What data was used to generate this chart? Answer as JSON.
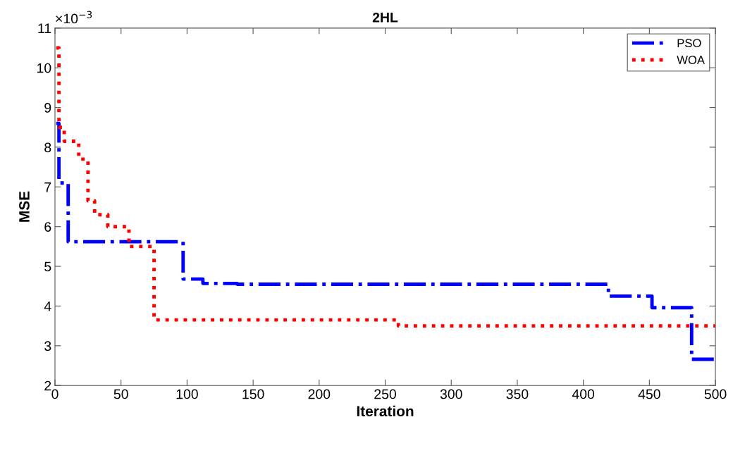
{
  "chart_data": {
    "type": "step",
    "title": "2HL",
    "xlabel": "Iteration",
    "ylabel": "MSE",
    "annotations": [
      "×10$^{−3}$"
    ],
    "xlim": [
      0,
      500
    ],
    "xticks": [
      0,
      50,
      100,
      150,
      200,
      250,
      300,
      350,
      400,
      450,
      500
    ],
    "ylim": [
      2,
      11
    ],
    "yticks": [
      2,
      3,
      4,
      5,
      6,
      7,
      8,
      9,
      10,
      11
    ],
    "grid": false,
    "legend": "top right",
    "series": [
      {
        "name": "PSO",
        "color": "#0000ff",
        "line_style": "dashdot",
        "x": [
          1,
          3,
          10,
          97,
          112,
          138,
          419,
          452,
          482,
          500
        ],
        "values": [
          8.6,
          7.1,
          5.62,
          4.68,
          4.57,
          4.55,
          4.25,
          3.96,
          2.66,
          2.66
        ]
      },
      {
        "name": "WOA",
        "color": "#ff0000",
        "line_style": "dotted",
        "x": [
          1,
          3,
          7,
          18,
          25,
          30,
          40,
          56,
          75,
          260,
          500
        ],
        "values": [
          10.5,
          8.5,
          8.15,
          7.7,
          6.65,
          6.3,
          6.0,
          5.5,
          3.65,
          3.5,
          3.5
        ]
      }
    ]
  }
}
